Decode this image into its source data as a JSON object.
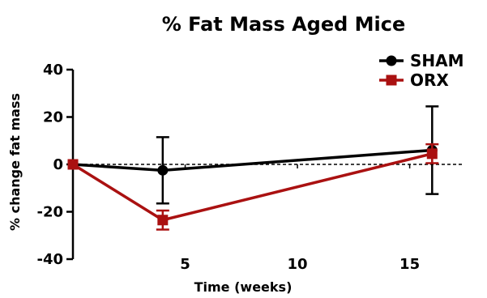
{
  "chart_data": {
    "type": "line",
    "title": "% Fat Mass Aged Mice",
    "xlabel": "Time (weeks)",
    "ylabel": "% change fat mass",
    "xlim": [
      0,
      17
    ],
    "ylim": [
      -40,
      40
    ],
    "x_ticks": [
      5,
      10,
      15
    ],
    "y_ticks": [
      40,
      20,
      0,
      -20,
      -40
    ],
    "zero_line": "dashed",
    "grid": false,
    "legend_position": "top-right",
    "series": [
      {
        "name": "SHAM",
        "color": "#000000",
        "marker": "circle",
        "x": [
          0,
          4,
          16
        ],
        "y": [
          0,
          -2.5,
          6
        ],
        "error": [
          0,
          14,
          18.5
        ]
      },
      {
        "name": "ORX",
        "color": "#aa1111",
        "marker": "square",
        "x": [
          0,
          4,
          16
        ],
        "y": [
          0,
          -23.5,
          4.5
        ],
        "error": [
          0,
          4,
          4
        ]
      }
    ]
  }
}
